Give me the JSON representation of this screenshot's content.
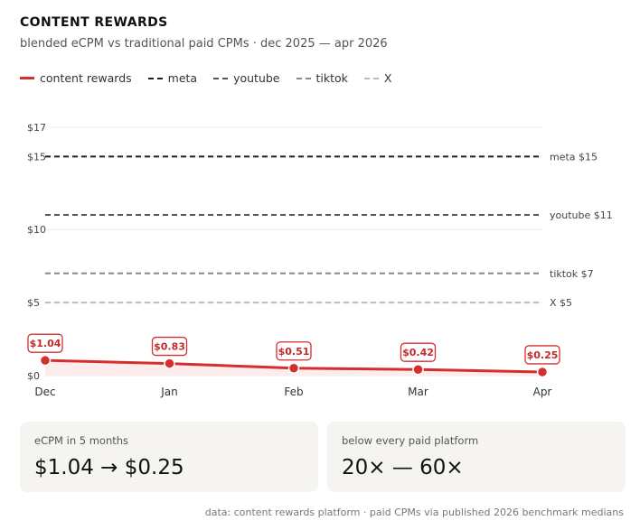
{
  "header": {
    "title": "CONTENT REWARDS",
    "subtitle": "blended eCPM vs traditional paid CPMs · dec 2025 — apr 2026"
  },
  "legend": [
    {
      "label": "content rewards",
      "color": "#d32f2f",
      "style": "solid"
    },
    {
      "label": "meta",
      "color": "#222222",
      "style": "dashed"
    },
    {
      "label": "youtube",
      "color": "#555555",
      "style": "dashed"
    },
    {
      "label": "tiktok",
      "color": "#888888",
      "style": "dashed"
    },
    {
      "label": "X",
      "color": "#bbbbbb",
      "style": "dashed"
    }
  ],
  "chart_data": {
    "type": "line",
    "categories": [
      "Dec",
      "Jan",
      "Feb",
      "Mar",
      "Apr"
    ],
    "series": [
      {
        "name": "content rewards",
        "values": [
          1.04,
          0.83,
          0.51,
          0.42,
          0.25
        ],
        "labels": [
          "$1.04",
          "$0.83",
          "$0.51",
          "$0.42",
          "$0.25"
        ],
        "color": "#d32f2f"
      }
    ],
    "reference_lines": [
      {
        "name": "meta",
        "value": 15,
        "label": "meta $15",
        "color": "#222222"
      },
      {
        "name": "youtube",
        "value": 11,
        "label": "youtube $11",
        "color": "#555555"
      },
      {
        "name": "tiktok",
        "value": 7,
        "label": "tiktok $7",
        "color": "#888888"
      },
      {
        "name": "X",
        "value": 5,
        "label": "X $5",
        "color": "#bbbbbb"
      }
    ],
    "yticks": [
      0,
      5,
      10,
      15,
      17
    ],
    "ytick_labels": [
      "$0",
      "$5",
      "$10",
      "$15",
      "$17"
    ],
    "ylim": [
      0,
      17
    ],
    "grid": true
  },
  "cards": [
    {
      "label": "eCPM in 5 months",
      "value": "$1.04 → $0.25"
    },
    {
      "label": "below every paid platform",
      "value": "20× — 60×"
    }
  ],
  "footer": "data: content rewards platform · paid CPMs via published 2026 benchmark medians"
}
